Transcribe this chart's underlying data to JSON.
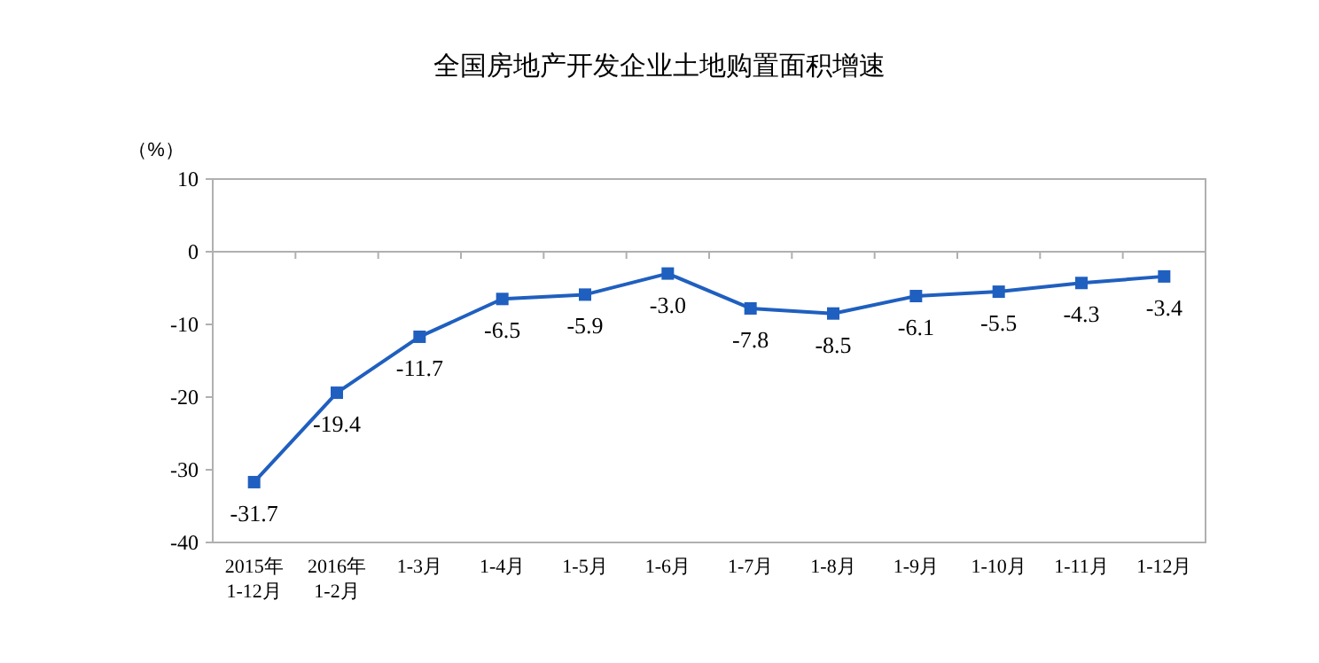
{
  "chart_data": {
    "type": "line",
    "title": "全国房地产开发企业土地购置面积增速",
    "ylabel": "（%）",
    "categories": [
      "2015年\n1-12月",
      "2016年\n1-2月",
      "1-3月",
      "1-4月",
      "1-5月",
      "1-6月",
      "1-7月",
      "1-8月",
      "1-9月",
      "1-10月",
      "1-11月",
      "1-12月"
    ],
    "series": [
      {
        "color": "#1f5fbf",
        "values": [
          -31.7,
          -19.4,
          -11.7,
          -6.5,
          -5.9,
          -3.0,
          -7.8,
          -8.5,
          -6.1,
          -5.5,
          -4.3,
          -3.4
        ],
        "value_labels": [
          "-31.7",
          "-19.4",
          "-11.7",
          "-6.5",
          "-5.9",
          "-3.0",
          "-7.8",
          "-8.5",
          "-6.1",
          "-5.5",
          "-4.3",
          "-3.4"
        ]
      }
    ],
    "ylim": [
      -40,
      10
    ],
    "yticks": [
      -40,
      -30,
      -20,
      -10,
      0,
      10
    ],
    "marker": "square"
  }
}
